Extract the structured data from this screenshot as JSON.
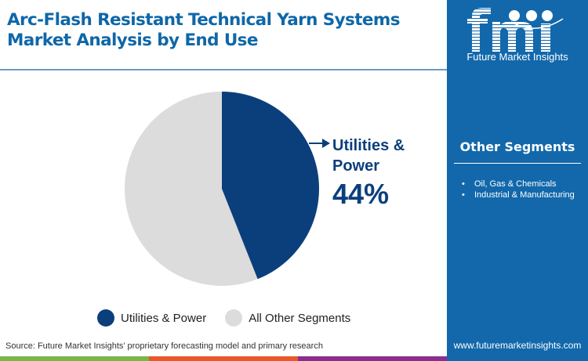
{
  "header": {
    "title_line1": "Arc-Flash Resistant Technical Yarn Systems",
    "title_line2": "Market Analysis by End Use"
  },
  "callout": {
    "label": "Utilities & Power",
    "value": "44%",
    "arrow_icon": "arrow-right-icon"
  },
  "legend": {
    "items": [
      {
        "label": "Utilities & Power",
        "color": "#0b3f7c"
      },
      {
        "label": "All Other Segments",
        "color": "#dcdcdc"
      }
    ]
  },
  "footer": {
    "source": "Source: Future Market Insights’ proprietary forecasting model and primary research",
    "stripe_colors": [
      "#7ab648",
      "#e8582a",
      "#8a2f8c"
    ]
  },
  "sidebar": {
    "logo_text": "fmi",
    "logo_subtitle": "Future Market Insights",
    "other_segments_title": "Other Segments",
    "other_segments": [
      "Oil, Gas & Chemicals",
      "Industrial & Manufacturing"
    ],
    "website": "www.futuremarketinsights.com",
    "background": "#1268ab"
  },
  "chart_data": {
    "type": "pie",
    "title": "Arc-Flash Resistant Technical Yarn Systems Market Analysis by End Use",
    "categories": [
      "Utilities & Power",
      "All Other Segments"
    ],
    "values": [
      44,
      56
    ],
    "colors": [
      "#0b3f7c",
      "#dcdcdc"
    ],
    "start_angle": "12 o'clock, clockwise",
    "annotations": [
      {
        "target": "Utilities & Power",
        "text": "Utilities & Power 44%"
      }
    ],
    "legend_position": "bottom"
  }
}
